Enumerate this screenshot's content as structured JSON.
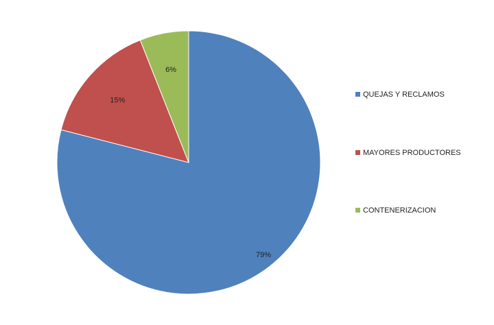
{
  "chart_data": {
    "type": "pie",
    "title": "",
    "categories": [
      "QUEJAS Y RECLAMOS",
      "MAYORES PRODUCTORES",
      "CONTENERIZACION"
    ],
    "values": [
      79,
      15,
      6
    ],
    "labels": [
      "79%",
      "15%",
      "6%"
    ],
    "colors": [
      "#4F81BD",
      "#C0504D",
      "#9BBB59"
    ],
    "legend_position": "right",
    "start": "top",
    "direction": "clockwise"
  }
}
